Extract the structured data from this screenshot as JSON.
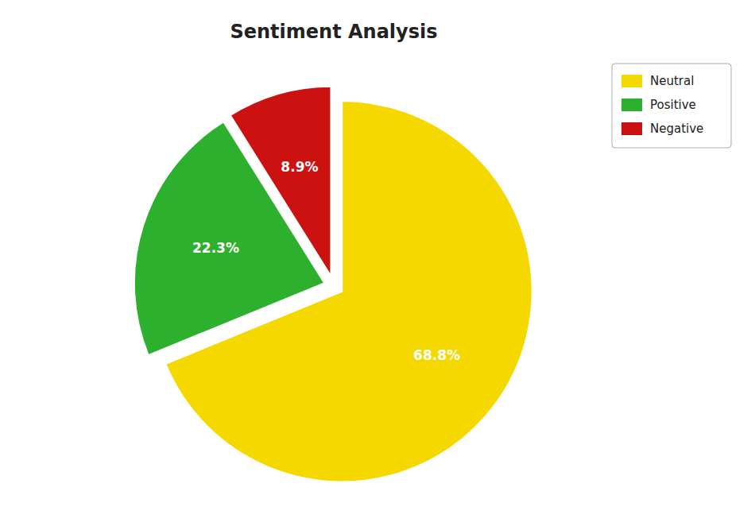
{
  "chart_data": {
    "type": "pie",
    "title": "Sentiment Analysis",
    "categories": [
      "Neutral",
      "Positive",
      "Negative"
    ],
    "values": [
      68.8,
      22.3,
      8.9
    ],
    "value_labels": [
      "68.8%",
      "22.3%",
      "8.9%"
    ],
    "colors": [
      "#f5d800",
      "#2db02d",
      "#cc1111"
    ],
    "data_labels": true,
    "legend": "upper right"
  }
}
